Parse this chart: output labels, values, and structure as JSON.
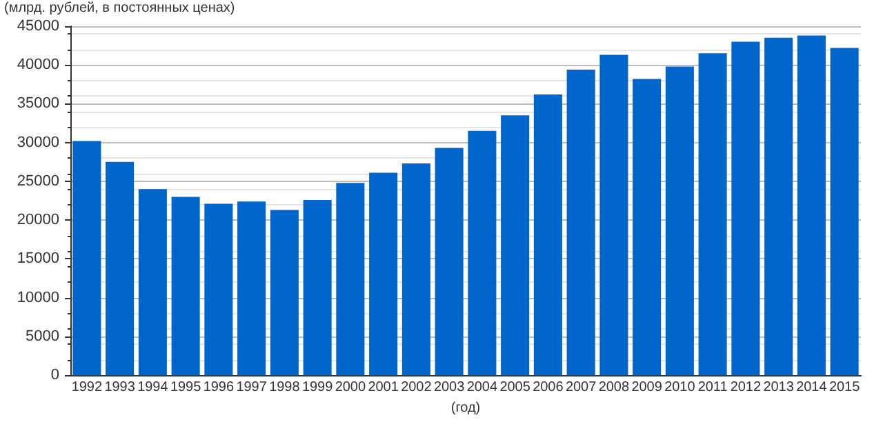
{
  "chart_data": {
    "type": "bar",
    "ylabel": "(млрд. рублей, в постоянных ценах)",
    "xlabel": "(год)",
    "categories": [
      "1992",
      "1993",
      "1994",
      "1995",
      "1996",
      "1997",
      "1998",
      "1999",
      "2000",
      "2001",
      "2002",
      "2003",
      "2004",
      "2005",
      "2006",
      "2007",
      "2008",
      "2009",
      "2010",
      "2011",
      "2012",
      "2013",
      "2014",
      "2015"
    ],
    "values": [
      30200,
      27500,
      24000,
      23000,
      22100,
      22400,
      21300,
      22600,
      24800,
      26100,
      27300,
      29300,
      31500,
      33500,
      36200,
      39400,
      41300,
      38200,
      39800,
      41500,
      43000,
      43500,
      43800,
      42200
    ],
    "color": "#0066cc",
    "ylim": [
      0,
      45000
    ],
    "yticks": [
      0,
      5000,
      10000,
      15000,
      20000,
      25000,
      30000,
      35000,
      40000,
      45000
    ],
    "grid": "y"
  }
}
